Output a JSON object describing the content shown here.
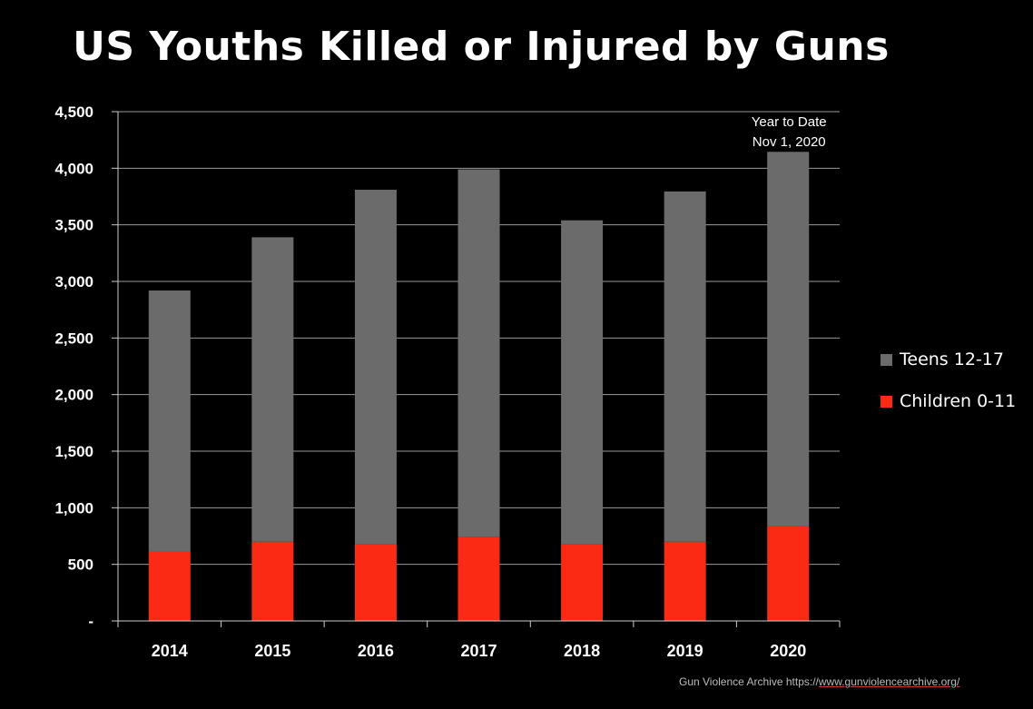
{
  "colors": {
    "teens": "#6b6b6b",
    "children": "#fa2a14",
    "background": "#000000",
    "grid": "#9a9a9a"
  },
  "chart_data": {
    "type": "bar",
    "stacked": true,
    "title": "US Youths Killed or Injured by Guns",
    "categories": [
      "2014",
      "2015",
      "2016",
      "2017",
      "2018",
      "2019",
      "2020"
    ],
    "series": [
      {
        "name": "Children 0-11",
        "values": [
          610,
          700,
          675,
          740,
          675,
          700,
          835
        ]
      },
      {
        "name": "Teens 12-17",
        "values": [
          2310,
          2690,
          3135,
          3250,
          2865,
          3095,
          3310
        ]
      }
    ],
    "ylim": [
      0,
      4500
    ],
    "yticks": [
      "-",
      "500",
      "1,000",
      "1,500",
      "2,000",
      "2,500",
      "3,000",
      "3,500",
      "4,000",
      "4,500"
    ],
    "ytick_values": [
      0,
      500,
      1000,
      1500,
      2000,
      2500,
      3000,
      3500,
      4000,
      4500
    ],
    "annotation": {
      "line1": "Year to Date",
      "line2": "Nov 1, 2020",
      "category": "2020"
    },
    "grid": true,
    "legend_position": "right"
  },
  "legend": {
    "teens_label": "Teens 12-17",
    "children_label": "Children 0-11"
  },
  "source": {
    "label": "Gun Violence Archive  https://",
    "link": "www.gunviolencearchive.org/"
  }
}
